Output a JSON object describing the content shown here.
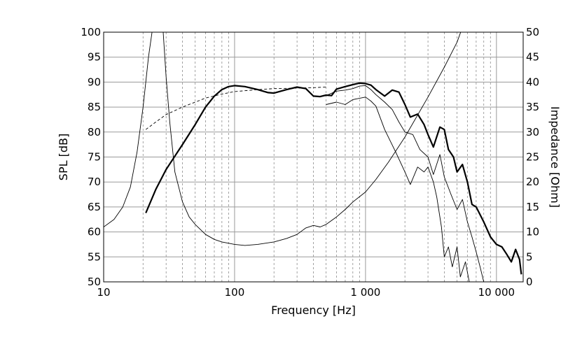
{
  "chart_data": {
    "type": "line",
    "xlabel": "Frequency [Hz]",
    "ylabel": "SPL [dB]",
    "y2label": "Impedance [Ohm]",
    "x_scale": "log",
    "xlim": [
      10,
      16000
    ],
    "ylim": [
      50,
      100
    ],
    "y2lim": [
      0,
      50
    ],
    "x_ticks": [
      10,
      100,
      1000,
      10000
    ],
    "x_tick_labels": [
      "10",
      "100",
      "1 000",
      "10 000"
    ],
    "y_ticks": [
      50,
      55,
      60,
      65,
      70,
      75,
      80,
      85,
      90,
      95,
      100
    ],
    "y_tick_labels": [
      "50",
      "55",
      "60",
      "65",
      "70",
      "75",
      "80",
      "85",
      "90",
      "95",
      "100"
    ],
    "y2_ticks": [
      0,
      5,
      10,
      15,
      20,
      25,
      30,
      35,
      40,
      45,
      50
    ],
    "y2_tick_labels": [
      "0",
      "5",
      "10",
      "15",
      "20",
      "25",
      "30",
      "35",
      "40",
      "45",
      "50"
    ],
    "grid": true,
    "series": [
      {
        "axis": "left",
        "style": "bold",
        "points": [
          [
            21,
            63.8
          ],
          [
            25,
            68.5
          ],
          [
            30,
            72.5
          ],
          [
            40,
            77.5
          ],
          [
            50,
            81.5
          ],
          [
            60,
            85
          ],
          [
            70,
            87.2
          ],
          [
            80,
            88.5
          ],
          [
            90,
            89.1
          ],
          [
            100,
            89.3
          ],
          [
            120,
            89.1
          ],
          [
            150,
            88.5
          ],
          [
            180,
            87.9
          ],
          [
            200,
            87.8
          ],
          [
            250,
            88.5
          ],
          [
            300,
            89
          ],
          [
            350,
            88.7
          ],
          [
            400,
            87.2
          ],
          [
            450,
            87.1
          ],
          [
            500,
            87.4
          ],
          [
            550,
            87.3
          ],
          [
            600,
            88.6
          ],
          [
            700,
            89.1
          ],
          [
            800,
            89.5
          ],
          [
            900,
            89.8
          ],
          [
            1000,
            89.7
          ],
          [
            1100,
            89.4
          ],
          [
            1200,
            88.5
          ],
          [
            1400,
            87.2
          ],
          [
            1600,
            88.4
          ],
          [
            1800,
            88
          ],
          [
            2000,
            85.5
          ],
          [
            2200,
            83
          ],
          [
            2500,
            83.6
          ],
          [
            2800,
            81.5
          ],
          [
            3000,
            79.5
          ],
          [
            3300,
            77
          ],
          [
            3700,
            81
          ],
          [
            4000,
            80.5
          ],
          [
            4300,
            76.5
          ],
          [
            4700,
            75
          ],
          [
            5000,
            72
          ],
          [
            5500,
            73.5
          ],
          [
            6000,
            70
          ],
          [
            6500,
            65.5
          ],
          [
            7000,
            65
          ],
          [
            8000,
            62
          ],
          [
            9000,
            59
          ],
          [
            10000,
            57.5
          ],
          [
            11000,
            57
          ],
          [
            12000,
            55.5
          ],
          [
            13000,
            54
          ],
          [
            14000,
            56.5
          ],
          [
            15000,
            54.5
          ],
          [
            15500,
            51.5
          ]
        ]
      },
      {
        "axis": "left",
        "style": "thin",
        "points": [
          [
            500,
            87.3
          ],
          [
            600,
            88.2
          ],
          [
            700,
            88.4
          ],
          [
            800,
            88.7
          ],
          [
            900,
            89.2
          ],
          [
            1000,
            89.3
          ],
          [
            1100,
            88.5
          ],
          [
            1200,
            87.5
          ],
          [
            1400,
            86
          ],
          [
            1600,
            84.5
          ],
          [
            1800,
            82
          ],
          [
            2000,
            80
          ],
          [
            2300,
            79.5
          ],
          [
            2600,
            76.5
          ],
          [
            3000,
            75
          ],
          [
            3300,
            71.5
          ],
          [
            3700,
            75.5
          ],
          [
            4000,
            71
          ],
          [
            4500,
            67.5
          ],
          [
            5000,
            64.5
          ],
          [
            5500,
            66.5
          ],
          [
            6000,
            62
          ],
          [
            6500,
            59
          ],
          [
            7000,
            56
          ],
          [
            7500,
            53
          ],
          [
            8000,
            50
          ]
        ]
      },
      {
        "axis": "left",
        "style": "thin",
        "points": [
          [
            500,
            85.5
          ],
          [
            600,
            86
          ],
          [
            700,
            85.5
          ],
          [
            800,
            86.5
          ],
          [
            1000,
            87
          ],
          [
            1100,
            86.2
          ],
          [
            1200,
            85.2
          ],
          [
            1400,
            80.5
          ],
          [
            1700,
            76
          ],
          [
            2000,
            72
          ],
          [
            2200,
            69.5
          ],
          [
            2500,
            73
          ],
          [
            2800,
            72
          ],
          [
            3000,
            73
          ],
          [
            3300,
            70
          ],
          [
            3500,
            67
          ],
          [
            3800,
            61
          ],
          [
            4000,
            55
          ],
          [
            4300,
            57
          ],
          [
            4600,
            53
          ],
          [
            5000,
            57
          ],
          [
            5300,
            51
          ],
          [
            5800,
            54
          ],
          [
            6200,
            50
          ]
        ]
      },
      {
        "axis": "left",
        "style": "dashed",
        "points": [
          [
            21,
            80.5
          ],
          [
            25,
            82
          ],
          [
            30,
            83.5
          ],
          [
            40,
            85
          ],
          [
            50,
            86
          ],
          [
            60,
            86.8
          ],
          [
            80,
            87.6
          ],
          [
            100,
            88.1
          ],
          [
            150,
            88.5
          ],
          [
            200,
            88.7
          ],
          [
            300,
            88.8
          ],
          [
            400,
            88.9
          ],
          [
            500,
            89
          ]
        ]
      },
      {
        "axis": "right",
        "style": "thin",
        "points": [
          [
            10,
            11
          ],
          [
            12,
            12.5
          ],
          [
            14,
            15
          ],
          [
            16,
            19
          ],
          [
            18,
            26
          ],
          [
            20,
            35
          ],
          [
            22,
            45
          ],
          [
            24,
            52
          ],
          [
            28,
            53
          ],
          [
            30,
            41
          ],
          [
            32,
            32
          ],
          [
            35,
            22
          ],
          [
            40,
            16
          ],
          [
            45,
            13
          ],
          [
            50,
            11.5
          ],
          [
            60,
            9.5
          ],
          [
            70,
            8.5
          ],
          [
            80,
            8
          ],
          [
            100,
            7.5
          ],
          [
            120,
            7.3
          ],
          [
            150,
            7.5
          ],
          [
            200,
            8
          ],
          [
            250,
            8.7
          ],
          [
            300,
            9.5
          ],
          [
            350,
            10.8
          ],
          [
            400,
            11.3
          ],
          [
            450,
            11
          ],
          [
            500,
            11.5
          ],
          [
            600,
            13
          ],
          [
            700,
            14.5
          ],
          [
            800,
            16
          ],
          [
            1000,
            18
          ],
          [
            1200,
            20.5
          ],
          [
            1500,
            24
          ],
          [
            2000,
            29
          ],
          [
            3000,
            37
          ],
          [
            4000,
            43
          ],
          [
            5000,
            48
          ],
          [
            5500,
            51
          ]
        ]
      }
    ]
  }
}
